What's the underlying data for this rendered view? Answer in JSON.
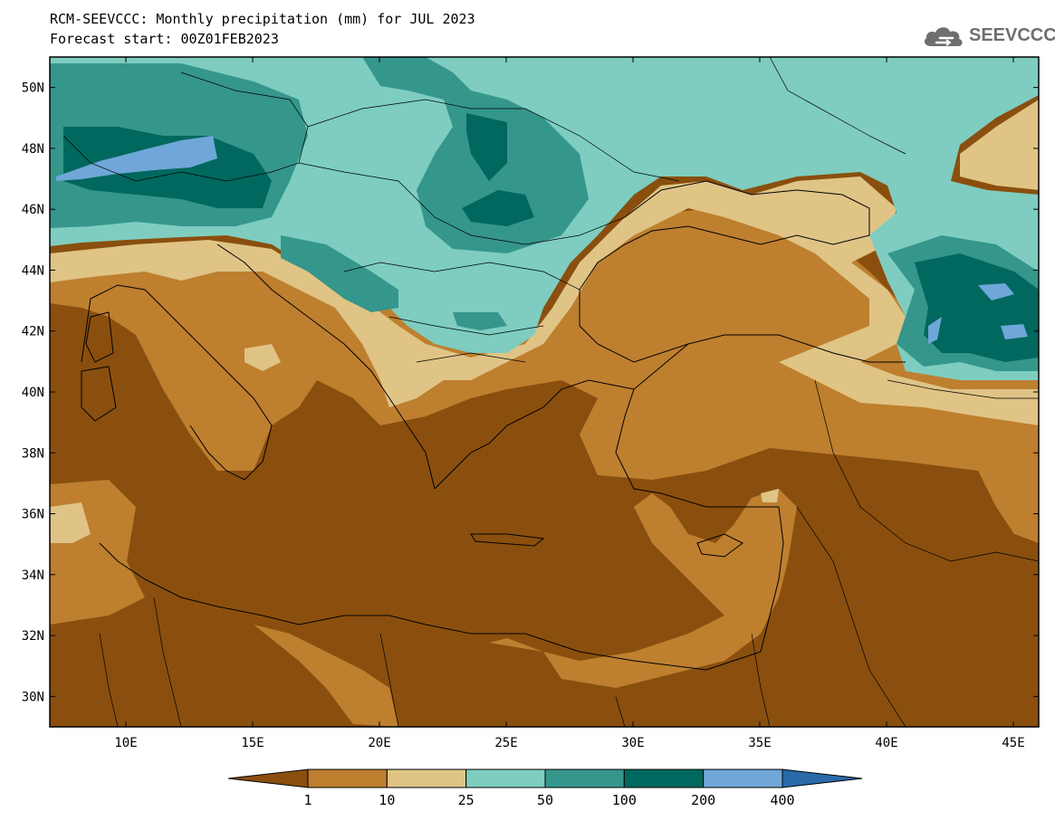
{
  "header": {
    "title_line1": "RCM-SEEVCCC: Monthly precipitation (mm) for JUL 2023",
    "title_line2": "Forecast start: 00Z01FEB2023"
  },
  "logo": {
    "text": "SEEVCCC",
    "icon": "cloud-logo-icon"
  },
  "map": {
    "lon_range": [
      7,
      46
    ],
    "lat_range": [
      29,
      51
    ],
    "x_ticks": [
      "10E",
      "15E",
      "20E",
      "25E",
      "30E",
      "35E",
      "40E",
      "45E"
    ],
    "x_tick_values": [
      10,
      15,
      20,
      25,
      30,
      35,
      40,
      45
    ],
    "y_ticks": [
      "50N",
      "48N",
      "46N",
      "44N",
      "42N",
      "40N",
      "38N",
      "36N",
      "34N",
      "32N",
      "30N"
    ],
    "y_tick_values": [
      50,
      48,
      46,
      44,
      42,
      40,
      38,
      36,
      34,
      32,
      30
    ]
  },
  "colorbar": {
    "labels": [
      "1",
      "10",
      "25",
      "50",
      "100",
      "200",
      "400"
    ],
    "colors": [
      "#8a4f0e",
      "#be7f2f",
      "#dfc486",
      "#7ecdc0",
      "#35968c",
      "#00685e",
      "#6fa7d8",
      "#2a6aa8"
    ]
  }
}
